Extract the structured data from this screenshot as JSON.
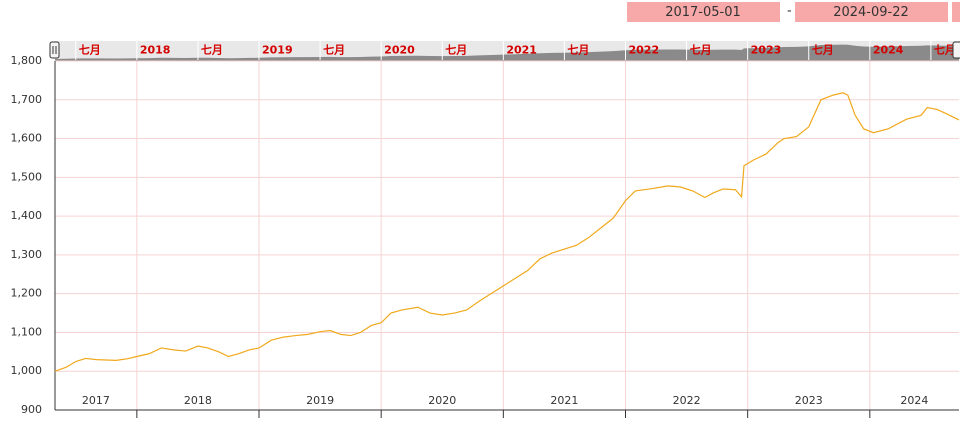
{
  "date_range": {
    "start": "2017-05-01",
    "end": "2024-09-22"
  },
  "chart_data": {
    "type": "line",
    "x": [
      2017.33,
      2017.42,
      2017.5,
      2017.58,
      2017.67,
      2017.83,
      2017.92,
      2018.0,
      2018.1,
      2018.2,
      2018.3,
      2018.4,
      2018.5,
      2018.58,
      2018.67,
      2018.75,
      2018.83,
      2018.92,
      2019.0,
      2019.1,
      2019.2,
      2019.3,
      2019.4,
      2019.5,
      2019.58,
      2019.67,
      2019.75,
      2019.83,
      2019.92,
      2020.0,
      2020.08,
      2020.17,
      2020.3,
      2020.4,
      2020.5,
      2020.6,
      2020.7,
      2020.8,
      2020.9,
      2021.0,
      2021.1,
      2021.2,
      2021.3,
      2021.4,
      2021.5,
      2021.6,
      2021.7,
      2021.8,
      2021.9,
      2022.0,
      2022.08,
      2022.2,
      2022.35,
      2022.45,
      2022.55,
      2022.65,
      2022.72,
      2022.8,
      2022.9,
      2022.95,
      2022.97,
      2023.05,
      2023.15,
      2023.25,
      2023.3,
      2023.4,
      2023.5,
      2023.6,
      2023.7,
      2023.78,
      2023.82,
      2023.88,
      2023.95,
      2024.03,
      2024.15,
      2024.3,
      2024.42,
      2024.47,
      2024.55,
      2024.62,
      2024.73
    ],
    "series": [
      {
        "color": "#f0a81c",
        "values": [
          1000,
          1010,
          1025,
          1033,
          1030,
          1028,
          1032,
          1038,
          1045,
          1060,
          1055,
          1052,
          1065,
          1060,
          1050,
          1038,
          1045,
          1055,
          1060,
          1080,
          1088,
          1092,
          1095,
          1102,
          1105,
          1095,
          1092,
          1100,
          1118,
          1125,
          1150,
          1158,
          1165,
          1150,
          1145,
          1150,
          1158,
          1180,
          1200,
          1220,
          1240,
          1260,
          1290,
          1305,
          1315,
          1325,
          1345,
          1370,
          1395,
          1440,
          1465,
          1470,
          1478,
          1475,
          1465,
          1448,
          1460,
          1470,
          1468,
          1450,
          1530,
          1545,
          1560,
          1590,
          1600,
          1605,
          1630,
          1700,
          1712,
          1718,
          1712,
          1660,
          1625,
          1615,
          1625,
          1650,
          1660,
          1680,
          1675,
          1665,
          1648
        ]
      }
    ],
    "xlim": [
      2017.33,
      2024.73
    ],
    "xticks": [
      2017,
      2018,
      2019,
      2020,
      2021,
      2022,
      2023,
      2024
    ],
    "ylim": [
      900,
      1800
    ],
    "yticks": [
      {
        "value": 900,
        "label": "900"
      },
      {
        "value": 1000,
        "label": "1,000"
      },
      {
        "value": 1100,
        "label": "1,100"
      },
      {
        "value": 1200,
        "label": "1,200"
      },
      {
        "value": 1300,
        "label": "1,300"
      },
      {
        "value": 1400,
        "label": "1,400"
      },
      {
        "value": 1500,
        "label": "1,500"
      },
      {
        "value": 1600,
        "label": "1,600"
      },
      {
        "value": 1700,
        "label": "1,700"
      },
      {
        "value": 1800,
        "label": "1,800"
      }
    ],
    "grid": true,
    "navigator_ticks": [
      {
        "value": 2017.5,
        "label": "七月"
      },
      2018,
      {
        "value": 2018.5,
        "label": "七月"
      },
      2019,
      {
        "value": 2019.5,
        "label": "七月"
      },
      2020,
      {
        "value": 2020.5,
        "label": "七月"
      },
      2021,
      {
        "value": 2021.5,
        "label": "七月"
      },
      2022,
      {
        "value": 2022.5,
        "label": "七月"
      },
      2023,
      {
        "value": 2023.5,
        "label": "七月"
      },
      2024,
      {
        "value": 2024.5,
        "label": "七月"
      }
    ]
  }
}
